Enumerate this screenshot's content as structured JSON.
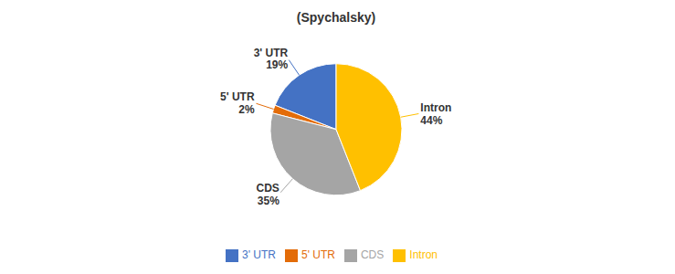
{
  "chart_data": {
    "type": "pie",
    "title": "(Spychalsky)",
    "categories": [
      "3' UTR",
      "5' UTR",
      "CDS",
      "Intron"
    ],
    "values": [
      19,
      2,
      35,
      44
    ],
    "value_labels": [
      "19%",
      "2%",
      "35%",
      "44%"
    ],
    "colors": [
      "#4472C4",
      "#E36C09",
      "#A5A5A5",
      "#FFC000"
    ],
    "data_labels": true,
    "legend": "bottom"
  }
}
